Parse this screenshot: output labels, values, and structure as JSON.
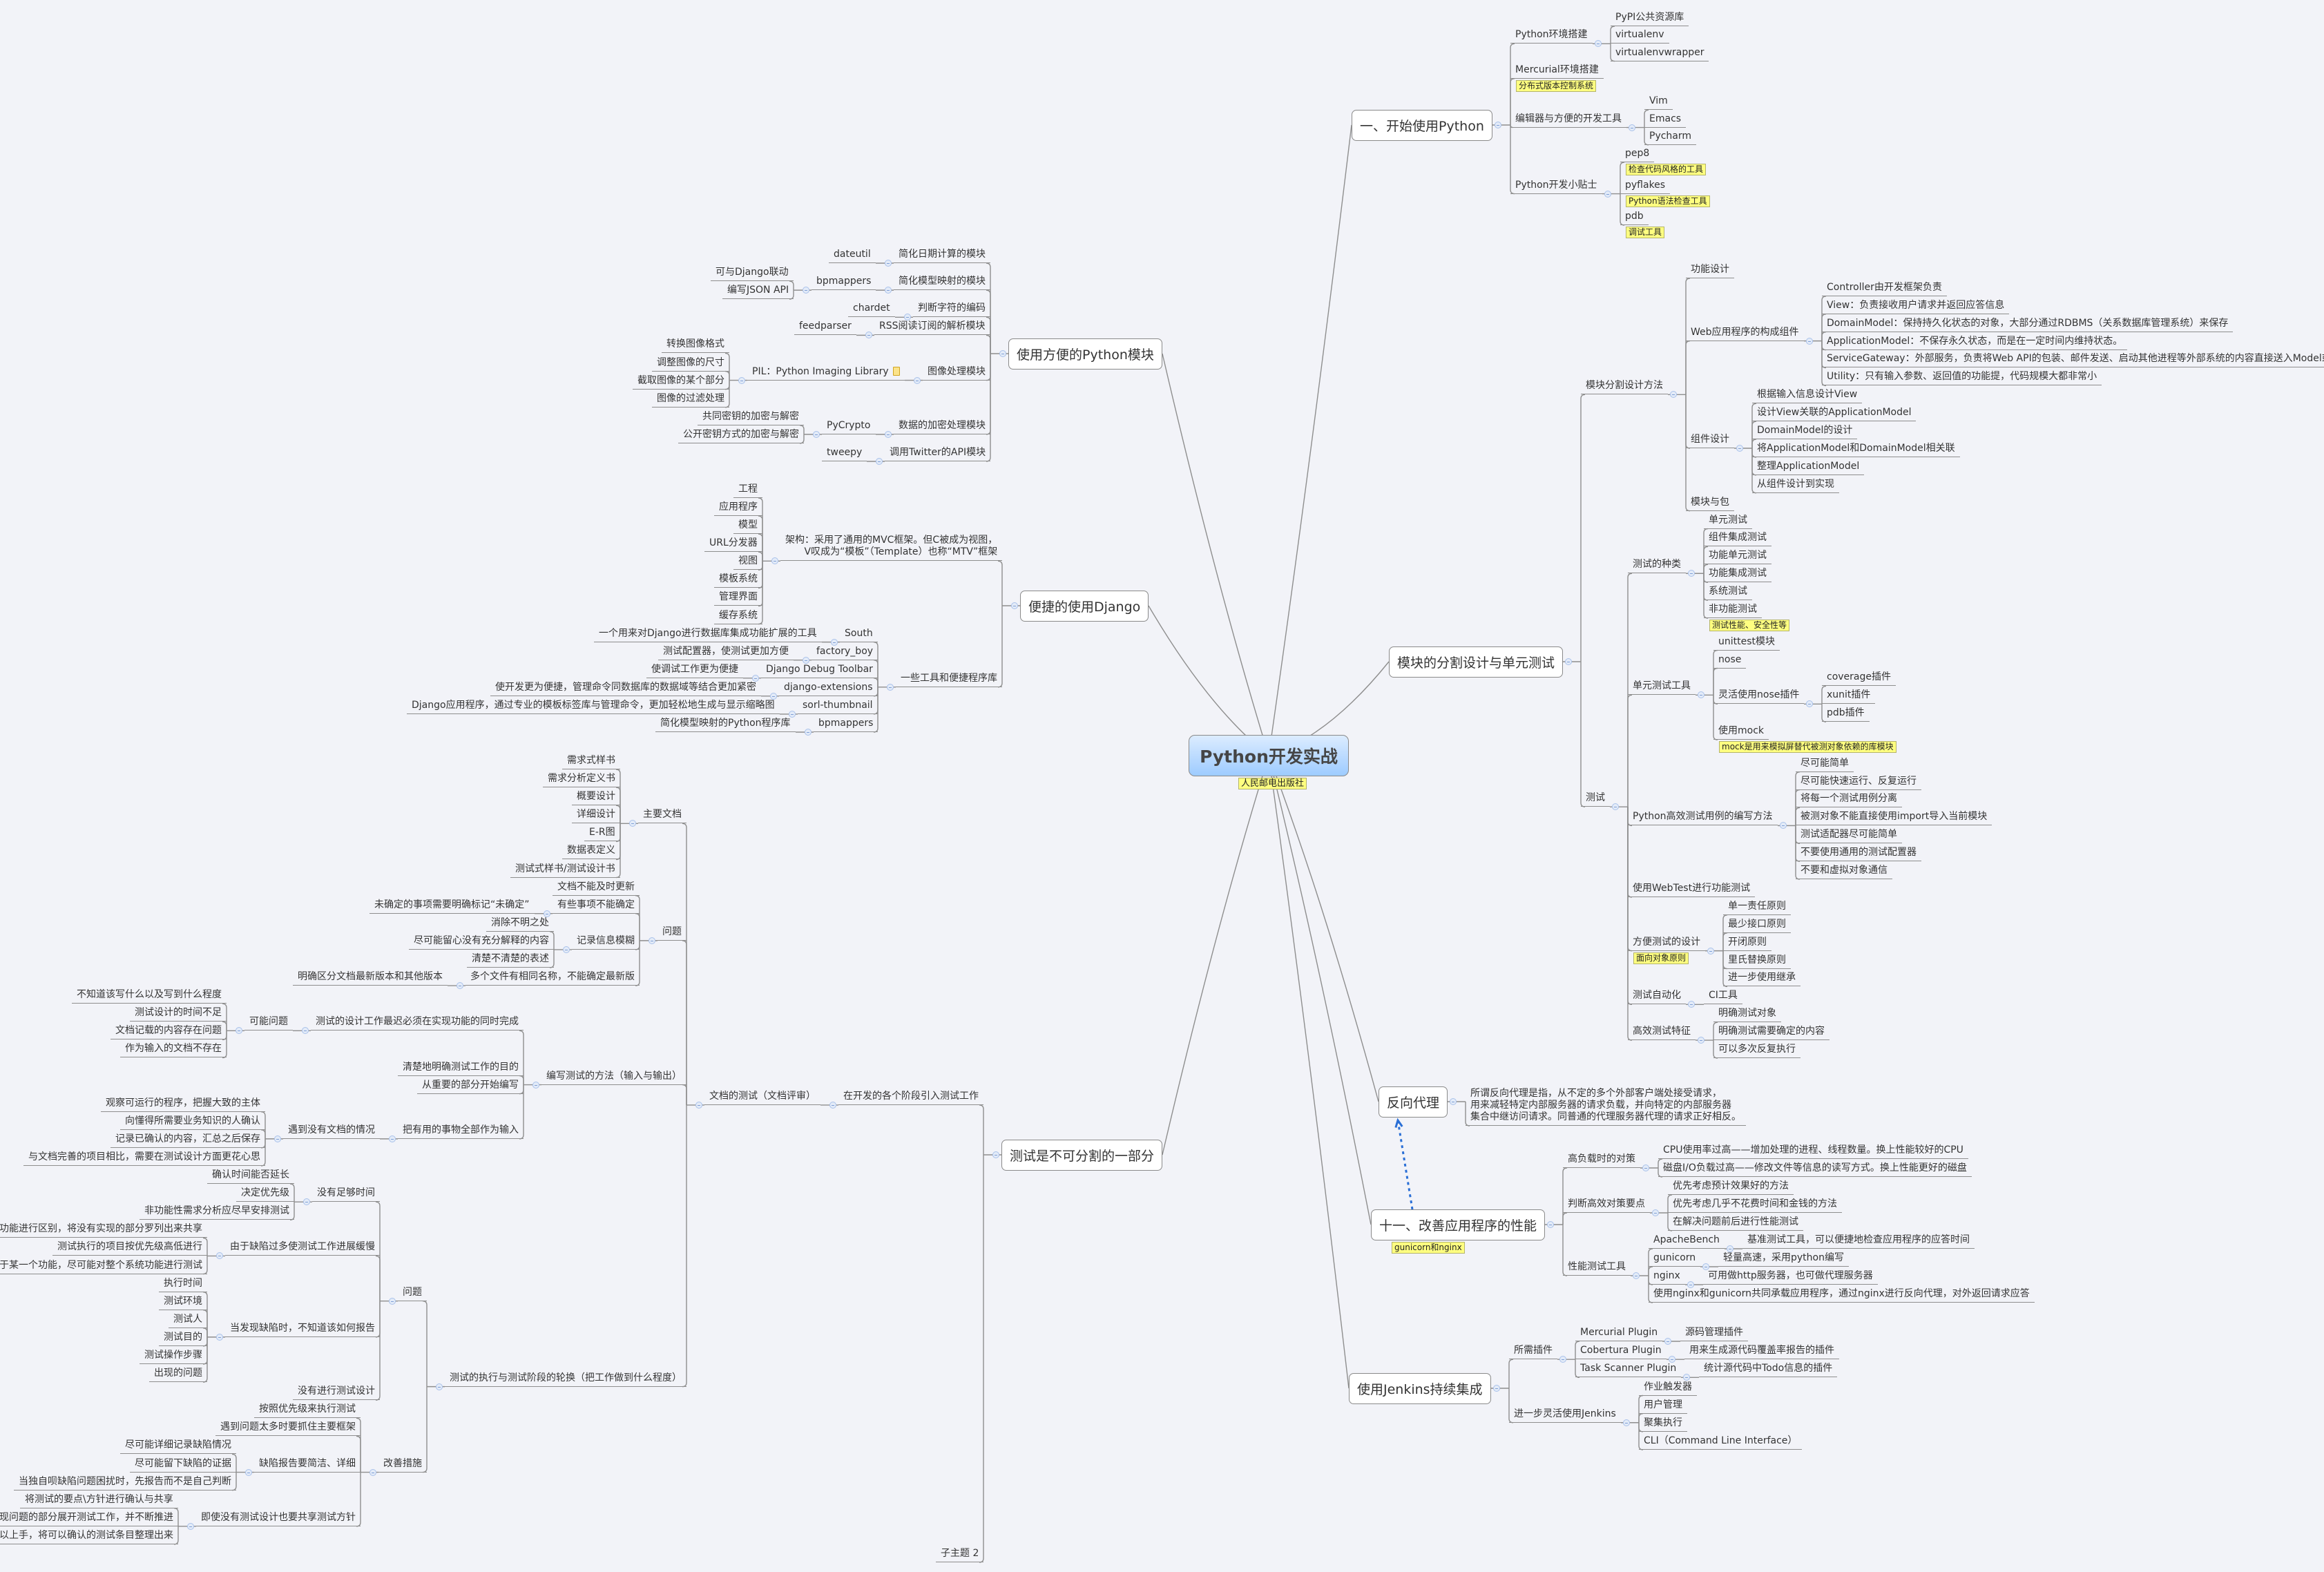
{
  "center": {
    "label": "Python开发实战",
    "note": "人民邮电出版社"
  },
  "colors": {
    "background": "#f2f3f8",
    "line": "#8e8e8e",
    "note_bg": "#ffff80",
    "center_gradient_top": "#dcecff",
    "center_gradient_bottom": "#9dcbff",
    "relationship_arrow": "#2a6fd6"
  },
  "relationship": {
    "from": "十一、改善应用程序的性能",
    "to": "反向代理",
    "style": "dotted-arrow"
  },
  "branches": [
    {
      "t": "一、开始使用Python",
      "c": [
        {
          "t": "Python环境搭建",
          "c": [
            "PyPI公共资源库",
            "virtualenv",
            "virtualenvwrapper"
          ]
        },
        {
          "t": "Mercurial环境搭建",
          "note": "分布式版本控制系统"
        },
        {
          "t": "编辑器与方便的开发工具",
          "c": [
            "Vim",
            "Emacs",
            "Pycharm"
          ]
        },
        {
          "t": "Python开发小贴士",
          "c": [
            {
              "t": "pep8",
              "note": "检查代码风格的工具"
            },
            {
              "t": "pyflakes",
              "note": "Python语法检查工具"
            },
            {
              "t": "pdb",
              "note": "调试工具"
            }
          ]
        }
      ]
    },
    {
      "t": "模块的分割设计与单元测试",
      "c": [
        {
          "t": "模块分割设计方法",
          "c": [
            "功能设计",
            {
              "t": "Web应用程序的构成组件",
              "c": [
                "Controller由开发框架负责",
                "View：负责接收用户请求并返回应答信息",
                "DomainModel：保持持久化状态的对象，大部分通过RDBMS（关系数据库管理系统）来保存",
                "ApplicationModel：不保存永久状态，而是在一定时间内维持状态。",
                "ServiceGateway：外部服务，负责将Web API的包装、邮件发送、启动其他进程等外部系统的内容直接送入Model或者View中。",
                "Utility：只有输入参数、返回值的功能提，代码规模大都非常小"
              ]
            },
            {
              "t": "组件设计",
              "c": [
                "根据输入信息设计View",
                "设计View关联的ApplicationModel",
                "DomainModel的设计",
                "将ApplicationModel和DomainModel相关联",
                "整理ApplicationModel",
                "从组件设计到实现"
              ]
            },
            "模块与包"
          ]
        },
        {
          "t": "测试",
          "c": [
            {
              "t": "测试的种类",
              "c": [
                "单元测试",
                "组件集成测试",
                "功能单元测试",
                "功能集成测试",
                "系统测试",
                {
                  "t": "非功能测试",
                  "note": "测试性能、安全性等"
                }
              ]
            },
            {
              "t": "单元测试工具",
              "c": [
                "unittest模块",
                "nose",
                {
                  "t": "灵活使用nose插件",
                  "c": [
                    "coverage插件",
                    "xunit插件",
                    "pdb插件"
                  ]
                },
                {
                  "t": "使用mock",
                  "note": "mock是用来模拟屏替代被测对象依赖的库模块"
                }
              ]
            },
            {
              "t": "Python高效测试用例的编写方法",
              "c": [
                "尽可能简单",
                "尽可能快速运行、反复运行",
                "将每一个测试用例分离",
                "被测对象不能直接使用import导入当前模块",
                "测试适配器尽可能简单",
                "不要使用通用的测试配置器",
                "不要和虚拟对象通信"
              ]
            },
            "使用WebTest进行功能测试",
            {
              "t": "方便测试的设计",
              "note": "面向对象原则",
              "c": [
                "单一责任原则",
                "最少接口原则",
                "开闭原则",
                "里氏替换原则",
                "进一步使用继承"
              ]
            },
            {
              "t": "测试自动化",
              "c": [
                "CI工具"
              ]
            },
            {
              "t": "高效测试特征",
              "c": [
                "明确测试对象",
                "明确测试需要确定的内容",
                "可以多次反复执行"
              ]
            }
          ]
        }
      ]
    },
    {
      "t": "反向代理",
      "c": [
        "所谓反向代理是指，从不定的多个外部客户端处接受请求，\n用来减轻特定内部服务器的请求负载，并向特定的内部服务器\n集合中继访问请求。同普通的代理服务器代理的请求正好相反。"
      ]
    },
    {
      "t": "十一、改善应用程序的性能",
      "note": "gunicorn和nginx",
      "c": [
        {
          "t": "高负载时的对策",
          "c": [
            "CPU使用率过高——增加处理的进程、线程数量。换上性能较好的CPU",
            "磁盘I/O负载过高——修改文件等信息的读写方式。换上性能更好的磁盘"
          ]
        },
        {
          "t": "判断高效对策要点",
          "c": [
            "优先考虑预计效果好的方法",
            "优先考虑几乎不花费时间和金钱的方法",
            "在解决问题前后进行性能测试"
          ]
        },
        {
          "t": "性能测试工具",
          "c": [
            {
              "t": "ApacheBench",
              "c": [
                "基准测试工具，可以便捷地检查应用程序的应答时间"
              ]
            },
            {
              "t": "gunicorn",
              "c": [
                "轻量高速，采用python编写"
              ]
            },
            {
              "t": "nginx",
              "c": [
                "可用做http服务器，也可做代理服务器"
              ]
            },
            "使用nginx和gunicorn共同承载应用程序，通过nginx进行反向代理，对外返回请求应答"
          ]
        }
      ]
    },
    {
      "t": "使用Jenkins持续集成",
      "c": [
        {
          "t": "所需插件",
          "c": [
            {
              "t": "Mercurial Plugin",
              "c": [
                "源码管理插件"
              ]
            },
            {
              "t": "Cobertura Plugin",
              "c": [
                "用来生成源代码覆盖率报告的插件"
              ]
            },
            {
              "t": "Task Scanner Plugin",
              "c": [
                "统计源代码中Todo信息的插件"
              ]
            }
          ]
        },
        {
          "t": "进一步灵活使用Jenkins",
          "c": [
            "作业触发器",
            "用户管理",
            "聚集执行",
            "CLI（Command Line Interface）"
          ]
        }
      ]
    },
    {
      "t": "使用方便的Python模块",
      "c": [
        {
          "t": "简化日期计算的模块",
          "c": [
            "dateutil"
          ]
        },
        {
          "t": "简化模型映射的模块",
          "c": [
            {
              "t": "bpmappers",
              "c": [
                "可与Django联动",
                "编写JSON API"
              ]
            }
          ]
        },
        {
          "t": "判断字符的编码",
          "c": [
            "chardet"
          ]
        },
        {
          "t": "RSS阅读订阅的解析模块",
          "c": [
            "feedparser"
          ]
        },
        {
          "t": "图像处理模块",
          "c": [
            {
              "t": "PIL：Python Imaging Library",
              "note_icon": "note-icon",
              "c": [
                "转换图像格式",
                "调整图像的尺寸",
                "截取图像的某个部分",
                "图像的过滤处理"
              ]
            }
          ]
        },
        {
          "t": "数据的加密处理模块",
          "c": [
            {
              "t": "PyCrypto",
              "c": [
                "共同密钥的加密与解密",
                "公开密钥方式的加密与解密"
              ]
            }
          ]
        },
        {
          "t": "调用Twitter的API模块",
          "c": [
            "tweepy"
          ]
        }
      ]
    },
    {
      "t": "便捷的使用Django",
      "c": [
        {
          "t": "架构：采用了通用的MVC框架。但C被成为视图，\nV叹成为“模板”（Template）也称“MTV”框架",
          "c": [
            "工程",
            "应用程序",
            "模型",
            "URL分发器",
            "视图",
            "模板系统",
            "管理界面",
            "缓存系统"
          ]
        },
        {
          "t": "一些工具和便捷程序库",
          "c": [
            {
              "t": "South",
              "c": [
                "一个用来对Django进行数据库集成功能扩展的工具"
              ]
            },
            {
              "t": "factory_boy",
              "c": [
                "测试配置器，使测试更加方便"
              ]
            },
            {
              "t": "Django Debug Toolbar",
              "c": [
                "使调试工作更为便捷"
              ]
            },
            {
              "t": "django-extensions",
              "c": [
                "使开发更为便捷，管理命令同数据库的数据域等结合更加紧密"
              ]
            },
            {
              "t": "sorl-thumbnail",
              "c": [
                "Django应用程序，通过专业的模板标签库与管理命令，更加轻松地生成与显示缩略图"
              ]
            },
            {
              "t": "bpmappers",
              "c": [
                "简化模型映射的Python程序库"
              ]
            }
          ]
        }
      ]
    },
    {
      "t": "测试是不可分割的一部分",
      "c": [
        {
          "t": "在开发的各个阶段引入测试工作",
          "c": [
            {
              "t": "文档的测试（文档评审）",
              "c": [
                {
                  "t": "主要文档",
                  "c": [
                    "需求式样书",
                    "需求分析定义书",
                    "概要设计",
                    "详细设计",
                    "E-R图",
                    "数据表定义",
                    "测试式样书/测试设计书"
                  ]
                },
                {
                  "t": "问题",
                  "c": [
                    "文档不能及时更新",
                    {
                      "t": "有些事项不能确定",
                      "c": [
                        "未确定的事项需要明确标记“未确定”"
                      ]
                    },
                    {
                      "t": "记录信息模糊",
                      "c": [
                        "消除不明之处",
                        "尽可能留心没有充分解释的内容",
                        "清楚不清楚的表述"
                      ]
                    },
                    {
                      "t": "多个文件有相同名称，不能确定最新版",
                      "c": [
                        "明确区分文档最新版本和其他版本"
                      ]
                    }
                  ]
                },
                {
                  "t": "编写测试的方法（输入与输出）",
                  "c": [
                    {
                      "t": "测试的设计工作最迟必须在实现功能的同时完成",
                      "c": [
                        {
                          "t": "可能问题",
                          "c": [
                            "不知道该写什么以及写到什么程度",
                            "测试设计的时间不足",
                            "文档记载的内容存在问题",
                            "作为输入的文档不存在"
                          ]
                        }
                      ]
                    },
                    "清楚地明确测试工作的目的",
                    "从重要的部分开始编写",
                    {
                      "t": "把有用的事物全部作为输入",
                      "c": [
                        {
                          "t": "遇到没有文档的情况",
                          "c": [
                            "观察可运行的程序，把握大致的主体",
                            "向懂得所需要业务知识的人确认",
                            "记录已确认的内容，汇总之后保存",
                            "与文档完善的项目相比，需要在测试设计方面更花心思"
                          ]
                        }
                      ]
                    }
                  ]
                },
                {
                  "t": "测试的执行与测试阶段的轮换（把工作做到什么程度）",
                  "c": [
                    {
                      "t": "问题",
                      "c": [
                        {
                          "t": "没有足够时间",
                          "c": [
                            "确认时间能否延长",
                            "决定优先级",
                            "非功能性需求分析应尽早安排测试"
                          ]
                        },
                        {
                          "t": "由于缺陷过多使测试工作进展缓慢",
                          "c": [
                            "将缺陷与未实现的功能进行区别，将没有实现的部分罗列出来共享",
                            "测试执行的项目按优先级高低进行",
                            "不过于拘泥于某一个功能，尽可能对整个系统功能进行测试"
                          ]
                        },
                        {
                          "t": "当发现缺陷时，不知道该如何报告",
                          "c": [
                            "执行时间",
                            "测试环境",
                            "测试人",
                            "测试目的",
                            "测试操作步骤",
                            "出现的问题"
                          ]
                        },
                        "没有进行测试设计"
                      ]
                    },
                    {
                      "t": "改善措施",
                      "c": [
                        "按照优先级来执行测试",
                        "遇到问题太多时要抓住主要框架",
                        {
                          "t": "缺陷报告要简洁、详细",
                          "c": [
                            "尽可能详细记录缺陷情况",
                            "尽可能留下缺陷的证据",
                            "当独自呗缺陷问题困扰时，先报告而不是自己判断"
                          ]
                        },
                        {
                          "t": "即使没有测试设计也要共享测试方针",
                          "c": [
                            "将测试的要点\\方针进行确认与共享",
                            "优先对可能出现问题的部分展开测试工作，并不断推进",
                            "在情形复杂，难以上手，将可以确认的测试条目整理出来"
                          ]
                        }
                      ]
                    }
                  ]
                }
              ]
            }
          ]
        },
        "子主题 2"
      ]
    }
  ]
}
